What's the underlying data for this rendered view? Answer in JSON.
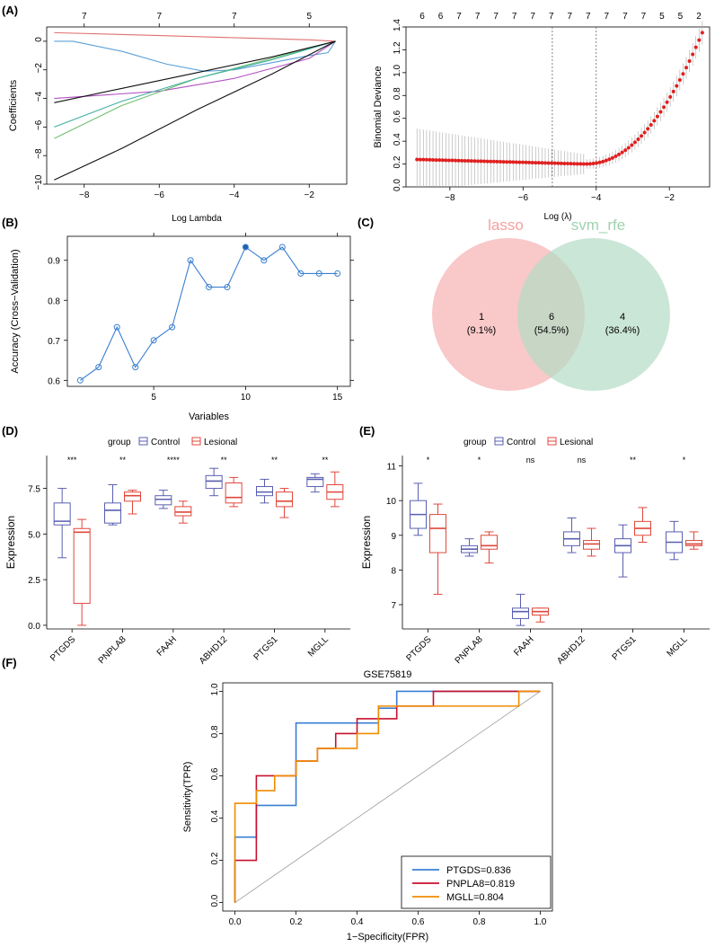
{
  "panels": {
    "A": "(A)",
    "B": "(B)",
    "C": "(C)",
    "D": "(D)",
    "E": "(E)",
    "F": "(F)"
  },
  "chart_data": [
    {
      "id": "A_left",
      "type": "line",
      "title": "",
      "xlabel": "Log Lambda",
      "ylabel": "Coefficients",
      "xlim": [
        -9,
        -1
      ],
      "ylim": [
        -10,
        1
      ],
      "xticks": [
        -8,
        -6,
        -4,
        -2
      ],
      "yticks": [
        0,
        -2,
        -4,
        -6,
        -8,
        -10
      ],
      "top_ticks": [
        {
          "x": -8,
          "label": "7"
        },
        {
          "x": -6,
          "label": "7"
        },
        {
          "x": -4,
          "label": "7"
        },
        {
          "x": -2,
          "label": "5"
        }
      ],
      "series": [
        {
          "name": "red",
          "color": "#e07070",
          "x": [
            -8.8,
            -6,
            -4,
            -2,
            -1.3
          ],
          "y": [
            0.6,
            0.4,
            0.25,
            0.1,
            0
          ]
        },
        {
          "name": "blue",
          "color": "#5aa0d8",
          "x": [
            -8.8,
            -8.3,
            -7,
            -5.8,
            -4.8,
            -4,
            -3,
            -2,
            -1.5,
            -1.3
          ],
          "y": [
            0,
            0,
            -0.7,
            -1.6,
            -2.1,
            -2,
            -1.5,
            -1,
            -0.8,
            0
          ]
        },
        {
          "name": "purple",
          "color": "#b050c0",
          "x": [
            -8.8,
            -6,
            -4,
            -2,
            -1.3
          ],
          "y": [
            -4,
            -3.5,
            -2.6,
            -1.2,
            0
          ]
        },
        {
          "name": "green",
          "color": "#70c070",
          "x": [
            -8.8,
            -7,
            -5,
            -3,
            -1.3
          ],
          "y": [
            -6.8,
            -4.5,
            -2.6,
            -1.2,
            0
          ]
        },
        {
          "name": "teal",
          "color": "#40b0a0",
          "x": [
            -8.8,
            -7,
            -5,
            -3,
            -1.3
          ],
          "y": [
            -6,
            -4.2,
            -2.6,
            -1.3,
            0
          ]
        },
        {
          "name": "black1",
          "color": "#111111",
          "x": [
            -8.8,
            -7,
            -5,
            -3,
            -1.3
          ],
          "y": [
            -4.3,
            -3.3,
            -2.2,
            -1.1,
            0
          ]
        },
        {
          "name": "black2",
          "color": "#111111",
          "x": [
            -8.8,
            -7,
            -5,
            -3,
            -1.3
          ],
          "y": [
            -9.7,
            -7.5,
            -4.8,
            -2.3,
            0
          ]
        }
      ]
    },
    {
      "id": "A_right",
      "type": "scatter",
      "xlabel": "Log (λ)",
      "ylabel": "Binomial Deviance",
      "xlim": [
        -9.2,
        -0.9
      ],
      "ylim": [
        0,
        1.4
      ],
      "xticks": [
        -8,
        -6,
        -4,
        -2
      ],
      "yticks": [
        0.0,
        0.2,
        0.4,
        0.6,
        0.8,
        1.0,
        1.2,
        1.4
      ],
      "vlines": [
        -5.2,
        -4.0
      ],
      "top_labels": [
        "6",
        "6",
        "7",
        "7",
        "7",
        "7",
        "7",
        "7",
        "7",
        "7",
        "7",
        "7",
        "7",
        "5",
        "5",
        "2"
      ],
      "description": "cross-validated deviance: flat around 0.24 to 0.20 until log lambda -4, then rising to 1.35 at -1.1"
    },
    {
      "id": "B",
      "type": "line",
      "xlabel": "Variables",
      "ylabel": "Accuracy (Cross−Validation)",
      "xlim": [
        0.3,
        15.7
      ],
      "ylim": [
        0.585,
        0.96
      ],
      "xticks": [
        5,
        10,
        15
      ],
      "yticks": [
        0.6,
        0.7,
        0.8,
        0.9
      ],
      "x": [
        1,
        2,
        3,
        4,
        5,
        6,
        7,
        8,
        9,
        10,
        11,
        12,
        13,
        14,
        15
      ],
      "values": [
        0.6,
        0.633,
        0.733,
        0.633,
        0.7,
        0.733,
        0.9,
        0.833,
        0.833,
        0.933,
        0.9,
        0.933,
        0.867,
        0.867,
        0.867
      ],
      "best_index": 10
    },
    {
      "id": "C",
      "type": "venn",
      "sets": [
        {
          "name": "lasso",
          "color": "#f4a0a0"
        },
        {
          "name": "svm_rfe",
          "color": "#a8d8b8"
        }
      ],
      "regions": [
        {
          "count": "1",
          "pct": "(9.1%)"
        },
        {
          "count": "6",
          "pct": "(54.5%)"
        },
        {
          "count": "4",
          "pct": "(36.4%)"
        }
      ]
    },
    {
      "id": "D",
      "type": "box",
      "legend_title": "group",
      "legend": [
        "Control",
        "Lesional"
      ],
      "ylabel": "Expression",
      "ylim": [
        -0.2,
        9.3
      ],
      "yticks": [
        0.0,
        2.5,
        5.0,
        7.5
      ],
      "ytick_labels": [
        "0.0",
        "2.5",
        "5.0",
        "7.5"
      ],
      "categories": [
        "PTGDS",
        "PNPLA8",
        "FAAH",
        "ABHD12",
        "PTGS1",
        "MGLL"
      ],
      "significance": [
        "***",
        "**",
        "****",
        "**",
        "**",
        "**"
      ],
      "control": [
        [
          3.7,
          5.5,
          5.7,
          6.7,
          7.5
        ],
        [
          5.5,
          5.6,
          6.3,
          6.7,
          7.7
        ],
        [
          6.4,
          6.6,
          6.9,
          7.1,
          7.4
        ],
        [
          7.1,
          7.5,
          7.9,
          8.2,
          8.6
        ],
        [
          6.7,
          7.1,
          7.3,
          7.6,
          8.0
        ],
        [
          7.3,
          7.6,
          8.0,
          8.1,
          8.3
        ]
      ],
      "lesional": [
        [
          0.0,
          1.2,
          5.1,
          5.3,
          5.8
        ],
        [
          6.1,
          6.8,
          7.1,
          7.3,
          7.4
        ],
        [
          5.6,
          6.0,
          6.2,
          6.5,
          6.8
        ],
        [
          6.5,
          6.7,
          7.0,
          7.8,
          8.1
        ],
        [
          5.9,
          6.5,
          6.8,
          7.3,
          7.5
        ],
        [
          6.5,
          6.9,
          7.3,
          7.7,
          8.4
        ]
      ]
    },
    {
      "id": "E",
      "type": "box",
      "legend_title": "group",
      "legend": [
        "Control",
        "Lesional"
      ],
      "ylabel": "Expression",
      "ylim": [
        6.3,
        11.3
      ],
      "yticks": [
        7,
        8,
        9,
        10,
        11
      ],
      "ytick_labels": [
        "7",
        "8",
        "9",
        "10",
        "11"
      ],
      "categories": [
        "PTGDS",
        "PNPLA8",
        "FAAH",
        "ABHD12",
        "PTGS1",
        "MGLL"
      ],
      "significance": [
        "*",
        "*",
        "ns",
        "ns",
        "**",
        "*"
      ],
      "control": [
        [
          9.0,
          9.2,
          9.6,
          10.0,
          10.5
        ],
        [
          8.4,
          8.5,
          8.6,
          8.7,
          8.9
        ],
        [
          6.4,
          6.6,
          6.8,
          6.9,
          7.3
        ],
        [
          8.5,
          8.7,
          8.9,
          9.1,
          9.5
        ],
        [
          7.8,
          8.5,
          8.7,
          8.9,
          9.3
        ],
        [
          8.3,
          8.5,
          8.8,
          9.1,
          9.4
        ]
      ],
      "lesional": [
        [
          7.3,
          8.5,
          9.2,
          9.6,
          9.9
        ],
        [
          8.2,
          8.6,
          8.7,
          9.0,
          9.1
        ],
        [
          6.5,
          6.7,
          6.8,
          6.9,
          6.9
        ],
        [
          8.4,
          8.6,
          8.75,
          8.85,
          9.2
        ],
        [
          8.8,
          9.0,
          9.2,
          9.4,
          9.8
        ],
        [
          8.6,
          8.7,
          8.75,
          8.85,
          9.1
        ]
      ]
    },
    {
      "id": "F",
      "type": "line",
      "title": "GSE75819",
      "xlabel": "1−Specificity(FPR)",
      "ylabel": "Sensitivity(TPR)",
      "xlim": [
        -0.04,
        1.04
      ],
      "ylim": [
        -0.04,
        1.04
      ],
      "xticks": [
        0.0,
        0.2,
        0.4,
        0.6,
        0.8,
        1.0
      ],
      "yticks": [
        0.0,
        0.2,
        0.4,
        0.6,
        0.8,
        1.0
      ],
      "tick_labels": [
        "0.0",
        "0.2",
        "0.4",
        "0.6",
        "0.8",
        "1.0"
      ],
      "series": [
        {
          "name": "PTGDS=0.836",
          "color": "#3a7fd5",
          "x": [
            0,
            0,
            0.07,
            0.07,
            0.2,
            0.2,
            0.27,
            0.47,
            0.47,
            0.53,
            0.53,
            0.6,
            0.93,
            1.0
          ],
          "y": [
            0,
            0.31,
            0.31,
            0.46,
            0.46,
            0.85,
            0.85,
            0.85,
            0.92,
            0.92,
            1.0,
            1.0,
            1.0,
            1.0
          ]
        },
        {
          "name": "PNPLA8=0.819",
          "color": "#c8102e",
          "x": [
            0,
            0,
            0.07,
            0.07,
            0.13,
            0.13,
            0.2,
            0.2,
            0.27,
            0.27,
            0.33,
            0.33,
            0.4,
            0.4,
            0.47,
            0.47,
            0.53,
            0.53,
            0.65,
            0.65,
            0.93,
            0.93,
            1.0
          ],
          "y": [
            0,
            0.2,
            0.2,
            0.6,
            0.6,
            0.6,
            0.6,
            0.67,
            0.67,
            0.73,
            0.73,
            0.8,
            0.8,
            0.87,
            0.87,
            0.87,
            0.87,
            0.93,
            0.93,
            1.0,
            1.0,
            1.0,
            1.0
          ]
        },
        {
          "name": "MGLL=0.804",
          "color": "#f08c00",
          "x": [
            0,
            0,
            0.07,
            0.07,
            0.13,
            0.13,
            0.2,
            0.2,
            0.27,
            0.27,
            0.33,
            0.33,
            0.4,
            0.4,
            0.47,
            0.47,
            0.93,
            0.93,
            1.0
          ],
          "y": [
            0,
            0.47,
            0.47,
            0.53,
            0.53,
            0.6,
            0.6,
            0.67,
            0.67,
            0.73,
            0.73,
            0.73,
            0.73,
            0.8,
            0.8,
            0.93,
            0.93,
            1.0,
            1.0
          ]
        }
      ]
    }
  ]
}
